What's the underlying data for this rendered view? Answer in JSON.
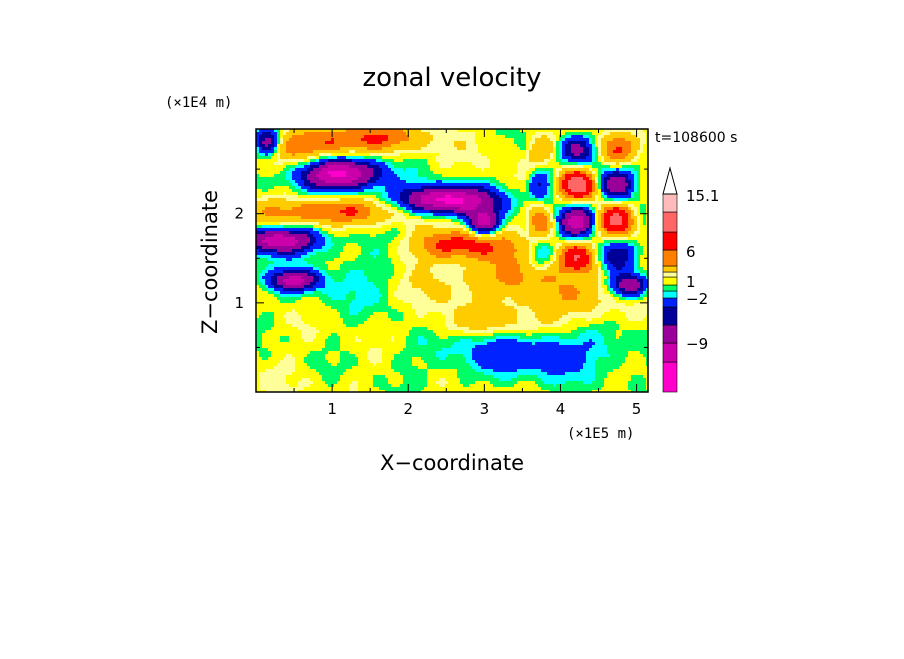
{
  "chart_data": {
    "type": "heatmap",
    "title": "zonal velocity",
    "xlabel": "X−coordinate",
    "ylabel": "Z−coordinate",
    "x_unit": "(×1E5 m)",
    "y_unit": "(×1E4 m)",
    "time_label": "t=108600 s",
    "x_ticks": [
      "1",
      "2",
      "3",
      "4",
      "5"
    ],
    "y_ticks": [
      "1",
      "2"
    ],
    "xlim": [
      0,
      5.15
    ],
    "ylim": [
      0,
      2.95
    ],
    "colorbar": {
      "labels": [
        "15.1",
        "6",
        "1",
        "−2",
        "−9"
      ],
      "levels": [
        -15,
        -12,
        -9,
        -6,
        -4,
        -2,
        -1,
        0,
        1,
        2,
        4,
        6,
        9,
        12,
        15.1
      ],
      "colors": [
        "#ff00cc",
        "#cc00aa",
        "#990099",
        "#000099",
        "#0022ff",
        "#00ffff",
        "#00ff66",
        "#ffff00",
        "#ffff99",
        "#ffcc00",
        "#ff7f00",
        "#ff0000",
        "#ff6666",
        "#ffbbbb"
      ],
      "extend": "max"
    },
    "features": [
      {
        "kind": "jet",
        "x": 1.1,
        "z": 2.45,
        "amplitude": -14,
        "sx": 0.38,
        "sz": 0.13
      },
      {
        "kind": "jet",
        "x": 1.0,
        "z": 2.02,
        "amplitude": 6,
        "sx": 0.7,
        "sz": 0.11
      },
      {
        "kind": "jet",
        "x": 0.3,
        "z": 1.7,
        "amplitude": -12,
        "sx": 0.35,
        "sz": 0.1
      },
      {
        "kind": "jet",
        "x": 0.5,
        "z": 1.25,
        "amplitude": -10,
        "sx": 0.22,
        "sz": 0.08
      },
      {
        "kind": "jet",
        "x": 2.5,
        "z": 2.15,
        "amplitude": -14,
        "sx": 0.45,
        "sz": 0.11
      },
      {
        "kind": "jet",
        "x": 2.7,
        "z": 1.65,
        "amplitude": 7,
        "sx": 0.45,
        "sz": 0.12
      },
      {
        "kind": "jet",
        "x": 3.0,
        "z": 1.9,
        "amplitude": -11,
        "sx": 0.15,
        "sz": 0.1
      },
      {
        "kind": "jet",
        "x": 0.8,
        "z": 2.75,
        "amplitude": 5,
        "sx": 0.55,
        "sz": 0.15
      },
      {
        "kind": "jet",
        "x": 1.6,
        "z": 2.85,
        "amplitude": 4,
        "sx": 0.5,
        "sz": 0.1
      },
      {
        "kind": "jet",
        "x": 3.4,
        "z": 1.3,
        "amplitude": 4,
        "sx": 0.4,
        "sz": 0.18
      },
      {
        "kind": "jet",
        "x": 3.6,
        "z": 0.45,
        "amplitude": -4,
        "sx": 0.9,
        "sz": 0.22
      },
      {
        "kind": "jet",
        "x": 3.05,
        "z": 0.75,
        "amplitude": 3,
        "sx": 0.5,
        "sz": 0.12
      },
      {
        "kind": "jet",
        "x": 4.2,
        "z": 1.05,
        "amplitude": 3,
        "sx": 0.5,
        "sz": 0.2
      },
      {
        "kind": "jet",
        "x": 4.9,
        "z": 1.2,
        "amplitude": -10,
        "sx": 0.18,
        "sz": 0.1
      },
      {
        "kind": "jet",
        "x": 1.5,
        "z": 1.3,
        "amplitude": -1.5,
        "sx": 0.8,
        "sz": 0.35
      },
      {
        "kind": "jet",
        "x": 0.15,
        "z": 2.8,
        "amplitude": -9,
        "sx": 0.12,
        "sz": 0.12
      },
      {
        "kind": "jet",
        "x": 2.3,
        "z": 1.2,
        "amplitude": 2.5,
        "sx": 0.3,
        "sz": 0.25
      },
      {
        "kind": "checker",
        "x0": 3.55,
        "x1": 5.15,
        "z0": 1.25,
        "z1": 2.95,
        "amplitude": 12,
        "kx": 5.6,
        "kz": 7.4
      }
    ]
  }
}
